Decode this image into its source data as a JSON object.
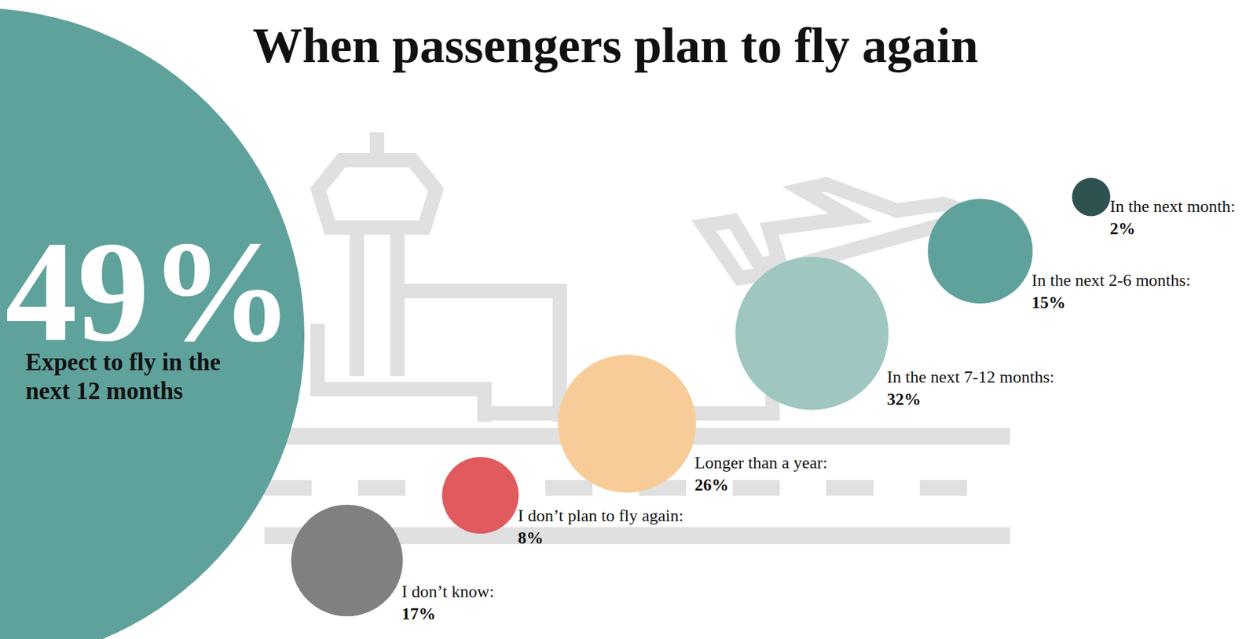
{
  "chart_data": {
    "type": "bubble",
    "title": "When passengers plan to fly again",
    "categories": [
      "I don’t know:",
      "I don’t plan to fly again:",
      "Longer than a year:",
      "In the next 7-12 months:",
      "In the next 2-6 months:",
      "In the next month:"
    ],
    "values": [
      17,
      8,
      26,
      32,
      15,
      2
    ],
    "value_labels": [
      "17%",
      "8%",
      "26%",
      "32%",
      "15%",
      "2%"
    ],
    "colors": [
      "#808080",
      "#e05a5e",
      "#f8cc98",
      "#a0c6c2",
      "#5fa29b",
      "#2e5250"
    ],
    "data_labels": true,
    "annotations": [
      {
        "label": "49%",
        "text": "Expect to fly in the next 12 months"
      }
    ]
  }
}
